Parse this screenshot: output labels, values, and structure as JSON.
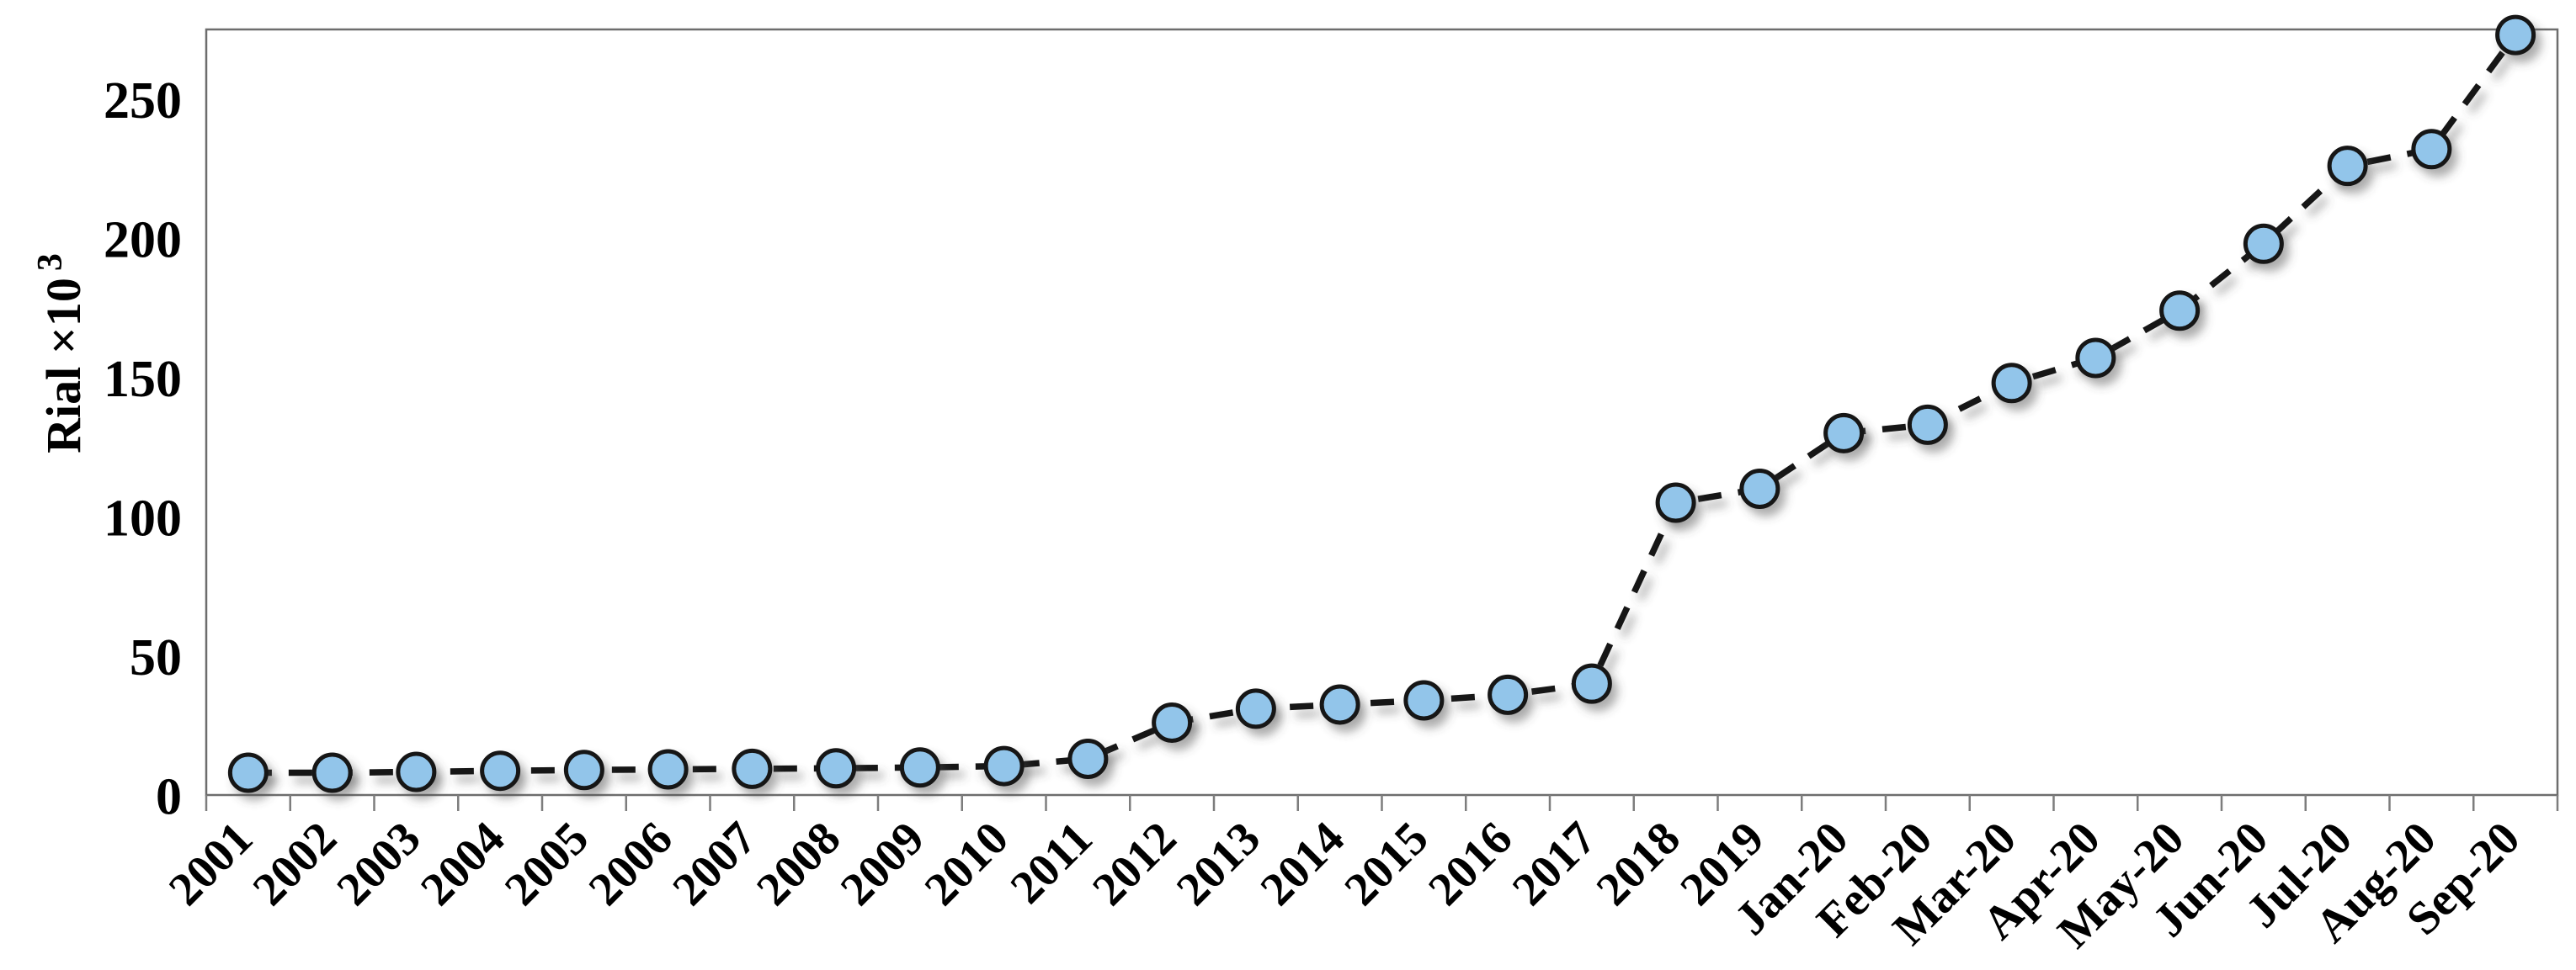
{
  "page": {
    "background": "#ffffff"
  },
  "chart_data": {
    "type": "line",
    "title": "",
    "xlabel": "",
    "ylabel": "Rial ×10",
    "ylabel_superscript": "3",
    "line_style": "dashed",
    "marker": "circle",
    "grid": "off",
    "legend": "none",
    "ylim": [
      0,
      275
    ],
    "yticks": [
      0,
      50,
      100,
      150,
      200,
      250
    ],
    "categories": [
      "2001",
      "2002",
      "2003",
      "2004",
      "2005",
      "2006",
      "2007",
      "2008",
      "2009",
      "2010",
      "2011",
      "2012",
      "2013",
      "2014",
      "2015",
      "2016",
      "2017",
      "2018",
      "2019",
      "Jan-20",
      "Feb-20",
      "Mar-20",
      "Apr-20",
      "May-20",
      "Jun-20",
      "Jul-20",
      "Aug-20",
      "Sep-20"
    ],
    "values": [
      8,
      8,
      8.3,
      8.7,
      9,
      9.2,
      9.4,
      9.6,
      9.9,
      10.4,
      13,
      26,
      31,
      32.5,
      34,
      36,
      40,
      105,
      110,
      130,
      133,
      148,
      157,
      174,
      198,
      226,
      232,
      273
    ],
    "colors": {
      "marker_fill": "#92C5EA",
      "line": "#141414",
      "marker_stroke": "#141414",
      "axis_border": "#6d6d6d",
      "tick": "#7d7d7d",
      "text": "#000000",
      "background": "#ffffff"
    }
  }
}
